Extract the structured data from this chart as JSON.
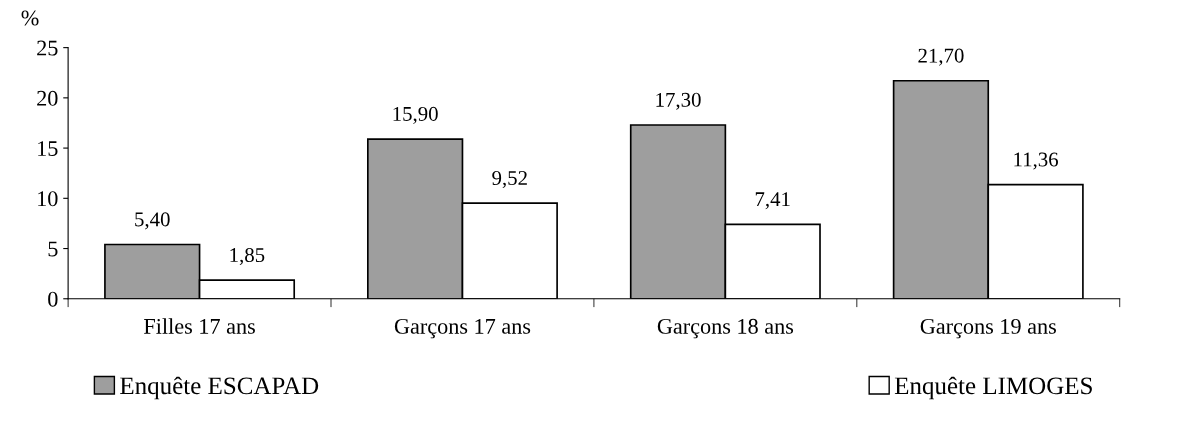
{
  "chart_data": {
    "type": "bar",
    "ylabel": "%",
    "categories": [
      "Filles 17 ans",
      "Garçons 17 ans",
      "Garçons 18 ans",
      "Garçons 19 ans"
    ],
    "series": [
      {
        "name": "Enquête ESCAPAD",
        "color": "#9e9e9e",
        "values": [
          5.4,
          15.9,
          17.3,
          21.7
        ],
        "value_labels": [
          "5,40",
          "15,90",
          "17,30",
          "21,70"
        ]
      },
      {
        "name": "Enquête LIMOGES",
        "color": "#ffffff",
        "values": [
          1.85,
          9.52,
          7.41,
          11.36
        ],
        "value_labels": [
          "1,85",
          "9,52",
          "7,41",
          "11,36"
        ]
      }
    ],
    "ylim": [
      0,
      25
    ],
    "yticks": [
      0,
      5,
      10,
      15,
      20,
      25
    ],
    "grid": false,
    "legend": "bottom"
  }
}
